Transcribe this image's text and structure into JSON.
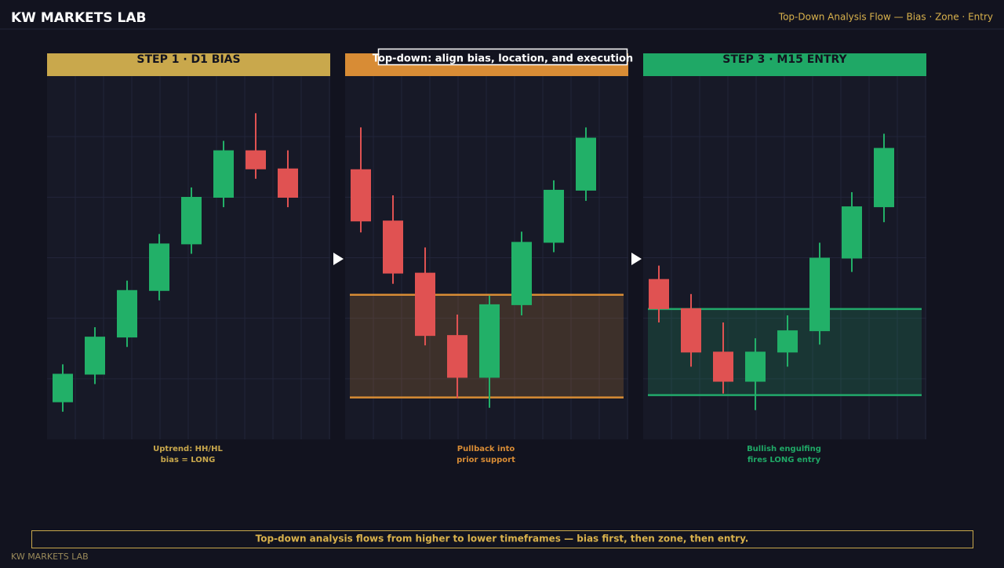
{
  "header": {
    "brand": "KW MARKETS LAB",
    "subtitle": "Top-Down Analysis Flow — Bias · Zone · Entry"
  },
  "overlay": "Top-down: align bias, location, and execution",
  "chart_data": [
    {
      "type": "candlestick",
      "title": "STEP 1  ·  D1 BIAS",
      "caption": [
        "Uptrend: HH/HL",
        "bias = LONG"
      ],
      "color": "#c9a84c",
      "up_color": "#22b068",
      "down_color": "#e05252",
      "ylim": [
        0,
        460
      ],
      "grid": true,
      "open": [
        47,
        82,
        129,
        188,
        247,
        306,
        366,
        343
      ],
      "high": [
        95,
        142,
        201,
        260,
        319,
        378,
        413,
        366
      ],
      "low": [
        35,
        70,
        117,
        176,
        235,
        294,
        330,
        294
      ],
      "close": [
        83,
        130,
        189,
        248,
        307,
        366,
        342,
        306
      ]
    },
    {
      "type": "candlestick",
      "caption": [
        "Pullback into",
        "prior support"
      ],
      "color": "#d88c35",
      "up_color": "#22b068",
      "down_color": "#e05252",
      "ylim": [
        0,
        460
      ],
      "grid": true,
      "zone": [
        53,
        183
      ],
      "zone_color": "#d88c35",
      "open": [
        342,
        277,
        211,
        132,
        78,
        170,
        249,
        315
      ],
      "high": [
        395,
        309,
        243,
        158,
        182,
        263,
        328,
        395
      ],
      "low": [
        262,
        197,
        119,
        52,
        40,
        157,
        237,
        302
      ],
      "close": [
        276,
        210,
        131,
        78,
        171,
        250,
        316,
        382
      ]
    },
    {
      "type": "candlestick",
      "title": "STEP 3  ·  M15 ENTRY",
      "caption": [
        "Bullish engulfing",
        "fires LONG entry"
      ],
      "color": "#1fa866",
      "up_color": "#22b068",
      "down_color": "#e05252",
      "ylim": [
        0,
        460
      ],
      "grid": true,
      "zone": [
        56,
        165
      ],
      "zone_color": "#22a86a",
      "open": [
        203,
        166,
        111,
        73,
        110,
        137,
        229,
        294
      ],
      "high": [
        220,
        184,
        148,
        128,
        157,
        249,
        313,
        387
      ],
      "low": [
        148,
        92,
        58,
        37,
        92,
        120,
        212,
        275
      ],
      "close": [
        165,
        110,
        73,
        111,
        138,
        230,
        295,
        369
      ]
    }
  ],
  "footer": {
    "note": "Top-down analysis flows from higher to lower timeframes — bias first, then zone, then entry.",
    "brand": "KW MARKETS LAB"
  }
}
